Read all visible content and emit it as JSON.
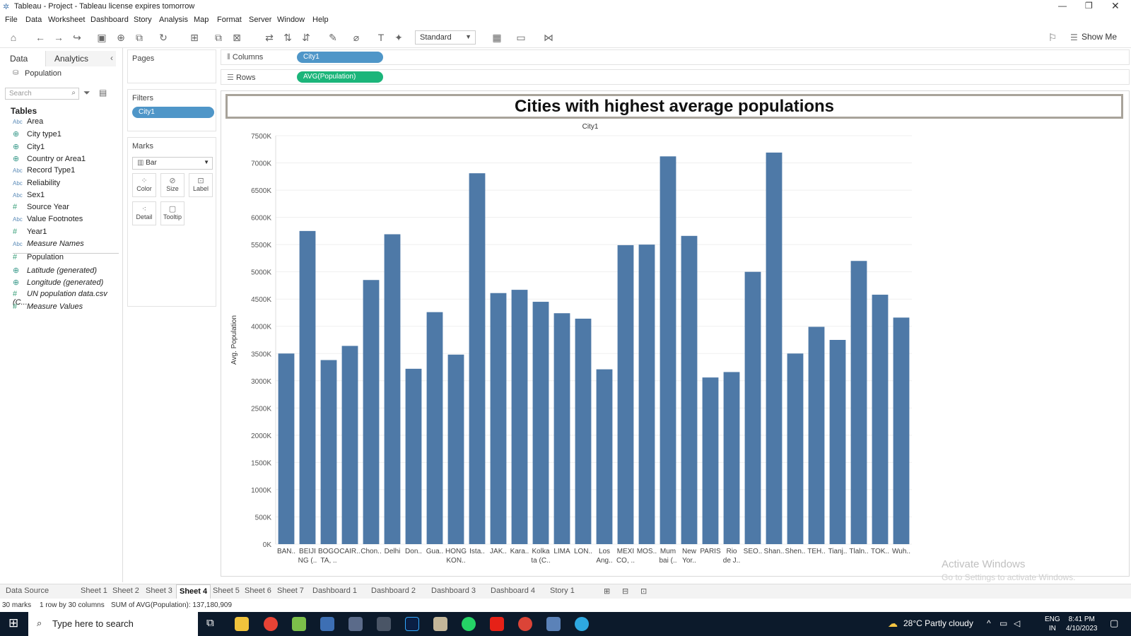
{
  "window": {
    "title": "Tableau - Project - Tableau license expires tomorrow"
  },
  "menu": [
    "File",
    "Data",
    "Worksheet",
    "Dashboard",
    "Story",
    "Analysis",
    "Map",
    "Format",
    "Server",
    "Window",
    "Help"
  ],
  "toolbar": {
    "fit_select": "Standard",
    "show_me": "Show Me"
  },
  "datapane": {
    "tab_data": "Data",
    "tab_analytics": "Analytics",
    "source": "Population",
    "search_placeholder": "Search",
    "tables_heading": "Tables",
    "fields": [
      {
        "type": "Abc",
        "name": "Area",
        "italic": false
      },
      {
        "type": "geo",
        "name": "City type1",
        "italic": false
      },
      {
        "type": "geo",
        "name": "City1",
        "italic": false
      },
      {
        "type": "geo",
        "name": "Country or Area1",
        "italic": false
      },
      {
        "type": "Abc",
        "name": "Record Type1",
        "italic": false
      },
      {
        "type": "Abc",
        "name": "Reliability",
        "italic": false
      },
      {
        "type": "Abc",
        "name": "Sex1",
        "italic": false
      },
      {
        "type": "#",
        "name": "Source Year",
        "italic": false
      },
      {
        "type": "Abc",
        "name": "Value Footnotes",
        "italic": false
      },
      {
        "type": "#",
        "name": "Year1",
        "italic": false
      },
      {
        "type": "Abc",
        "name": "Measure Names",
        "italic": true
      },
      {
        "type": "#",
        "name": "Population",
        "italic": false
      },
      {
        "type": "geo",
        "name": "Latitude (generated)",
        "italic": true
      },
      {
        "type": "geo",
        "name": "Longitude (generated)",
        "italic": true
      },
      {
        "type": "#",
        "name": "UN population data.csv (C...",
        "italic": true
      },
      {
        "type": "#",
        "name": "Measure Values",
        "italic": true
      }
    ]
  },
  "shelves": {
    "pages": "Pages",
    "filters": "Filters",
    "filter_pill": "City1",
    "marks": "Marks",
    "mark_type": "Bar",
    "mark_buttons": [
      "Color",
      "Size",
      "Label",
      "Detail",
      "Tooltip"
    ],
    "columns_label": "Columns",
    "columns_pill": "City1",
    "rows_label": "Rows",
    "rows_pill": "AVG(Population)"
  },
  "worksheet": {
    "title": "Cities with highest average populations"
  },
  "chart_data": {
    "type": "bar",
    "title": "Cities with highest average populations",
    "xlabel": "City1",
    "ylabel": "Avg. Population",
    "ylim": [
      0,
      7500000
    ],
    "yticks": [
      "0K",
      "500K",
      "1000K",
      "1500K",
      "2000K",
      "2500K",
      "3000K",
      "3500K",
      "4000K",
      "4500K",
      "5000K",
      "5500K",
      "6000K",
      "6500K",
      "7000K",
      "7500K"
    ],
    "grid": true,
    "color": "#4e79a7",
    "categories": [
      [
        "BAN.."
      ],
      [
        "BEIJI",
        "NG (.."
      ],
      [
        "BOGO",
        "TA, .."
      ],
      [
        "CAIR.."
      ],
      [
        "Chon.."
      ],
      [
        "Delhi"
      ],
      [
        "Don.."
      ],
      [
        "Gua.."
      ],
      [
        "HONG",
        "KON.."
      ],
      [
        "Ista.."
      ],
      [
        "JAK.."
      ],
      [
        "Kara.."
      ],
      [
        "Kolka",
        "ta (C.."
      ],
      [
        "LIMA"
      ],
      [
        "LON.."
      ],
      [
        "Los",
        "Ang.."
      ],
      [
        "MEXI",
        "CO, .."
      ],
      [
        "MOS.."
      ],
      [
        "Mum",
        "bai (.."
      ],
      [
        "New",
        "Yor.."
      ],
      [
        "PARIS"
      ],
      [
        "Rio",
        "de J.."
      ],
      [
        "SEO.."
      ],
      [
        "Shan.."
      ],
      [
        "Shen.."
      ],
      [
        "TEH.."
      ],
      [
        "Tianj.."
      ],
      [
        "Tlaln.."
      ],
      [
        "TOK.."
      ],
      [
        "Wuh.."
      ]
    ],
    "values": [
      3500000,
      5750000,
      3380000,
      3640000,
      4850000,
      5690000,
      3220000,
      4260000,
      3480000,
      6810000,
      4610000,
      4670000,
      4450000,
      4240000,
      4140000,
      3210000,
      5490000,
      5500000,
      7120000,
      5660000,
      3060000,
      3160000,
      5000000,
      7190000,
      3500000,
      3990000,
      3750000,
      5200000,
      4580000,
      4160000
    ]
  },
  "watermark": {
    "line1": "Activate Windows",
    "line2": "Go to Settings to activate Windows."
  },
  "sheettabs": [
    "Data Source",
    "Sheet 1",
    "Sheet 2",
    "Sheet 3",
    "Sheet 4",
    "Sheet 5",
    "Sheet 6",
    "Sheet 7",
    "Dashboard 1",
    "Dashboard 2",
    "Dashboard 3",
    "Dashboard 4",
    "Story 1"
  ],
  "active_tab": "Sheet 4",
  "status": {
    "marks": "30 marks",
    "rows": "1 row by 30 columns",
    "sum": "SUM of AVG(Population): 137,180,909"
  },
  "taskbar": {
    "search": "Type here to search",
    "weather": "28°C  Partly cloudy",
    "lang1": "ENG",
    "lang2": "IN",
    "time": "8:41 PM",
    "date": "4/10/2023"
  }
}
